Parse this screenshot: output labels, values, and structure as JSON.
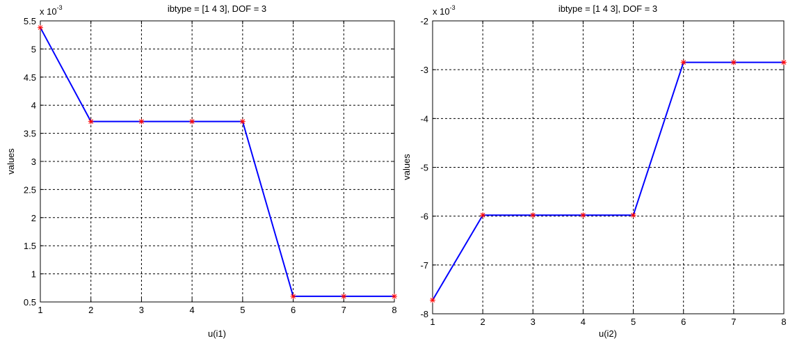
{
  "chart_data": [
    {
      "type": "line",
      "title": "ibtype = [1 4 3], DOF = 3",
      "xlabel": "u(i1)",
      "ylabel": "values",
      "exponent_base": "x 10",
      "exponent_power": "-3",
      "xlim": [
        1,
        8
      ],
      "ylim": [
        0.5,
        5.5
      ],
      "x_ticks": [
        1,
        2,
        3,
        4,
        5,
        6,
        7,
        8
      ],
      "y_ticks": [
        0.5,
        1,
        1.5,
        2,
        2.5,
        3,
        3.5,
        4,
        4.5,
        5,
        5.5
      ],
      "y_tick_labels": [
        "0.5",
        "1",
        "1.5",
        "2",
        "2.5",
        "3",
        "3.5",
        "4",
        "4.5",
        "5",
        "5.5"
      ],
      "grid": true,
      "series": [
        {
          "x": [
            1,
            2,
            3,
            4,
            5,
            6,
            7,
            8
          ],
          "y": [
            5.38,
            3.71,
            3.71,
            3.71,
            3.71,
            0.6,
            0.6,
            0.6
          ],
          "line_color": "#0000ff",
          "marker_color": "#ff0000"
        }
      ]
    },
    {
      "type": "line",
      "title": "ibtype = [1 4 3], DOF = 3",
      "xlabel": "u(i2)",
      "ylabel": "values",
      "exponent_base": "x 10",
      "exponent_power": "-3",
      "xlim": [
        1,
        8
      ],
      "ylim": [
        -8,
        -2
      ],
      "x_ticks": [
        1,
        2,
        3,
        4,
        5,
        6,
        7,
        8
      ],
      "y_ticks": [
        -8,
        -7,
        -6,
        -5,
        -4,
        -3,
        -2
      ],
      "y_tick_labels": [
        "-8",
        "-7",
        "-6",
        "-5",
        "-4",
        "-3",
        "-2"
      ],
      "grid": true,
      "series": [
        {
          "x": [
            1,
            2,
            3,
            4,
            5,
            6,
            7,
            8
          ],
          "y": [
            -7.72,
            -5.98,
            -5.98,
            -5.98,
            -5.98,
            -2.85,
            -2.85,
            -2.85
          ],
          "line_color": "#0000ff",
          "marker_color": "#ff0000"
        }
      ]
    }
  ]
}
